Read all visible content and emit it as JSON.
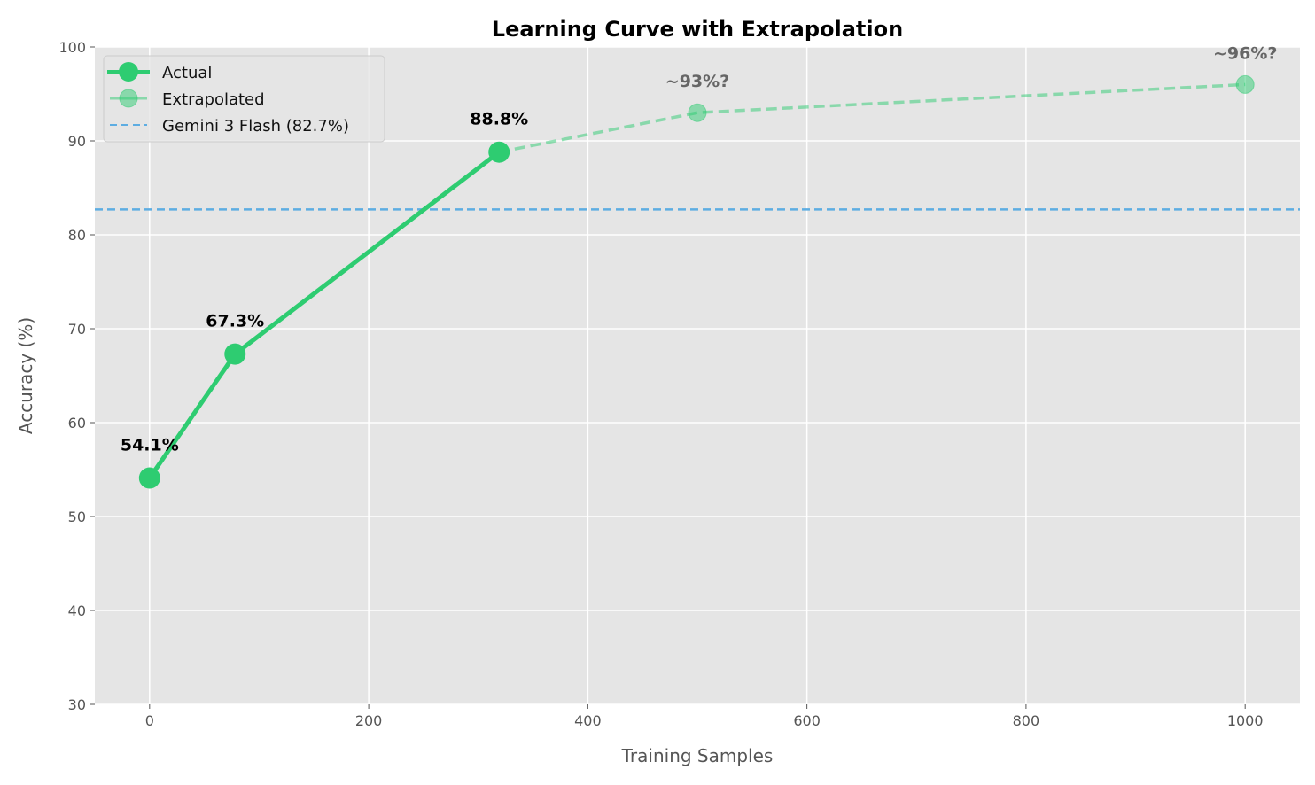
{
  "chart_data": {
    "type": "line",
    "title": "Learning Curve with Extrapolation",
    "xlabel": "Training Samples",
    "ylabel": "Accuracy (%)",
    "xlim": [
      -50,
      1050
    ],
    "ylim": [
      30,
      100
    ],
    "xticks": [
      0,
      200,
      400,
      600,
      800,
      1000
    ],
    "yticks": [
      30,
      40,
      50,
      60,
      70,
      80,
      90,
      100
    ],
    "grid": true,
    "legend_position": "top-left",
    "series": [
      {
        "name": "Actual",
        "color": "#2ecc71",
        "style": "solid",
        "x": [
          0,
          78,
          319
        ],
        "y": [
          54.1,
          67.3,
          88.8
        ],
        "labels": [
          "54.1%",
          "67.3%",
          "88.8%"
        ]
      },
      {
        "name": "Extrapolated",
        "color": "#2ecc71",
        "style": "dashed",
        "alpha": 0.5,
        "x": [
          319,
          500,
          1000
        ],
        "y": [
          88.8,
          93,
          96
        ],
        "labels": [
          "",
          "~93%?",
          "~96%?"
        ]
      }
    ],
    "hlines": [
      {
        "name": "Gemini 3 Flash (82.7%)",
        "y": 82.7,
        "color": "#5dade2",
        "style": "dashed"
      }
    ]
  }
}
